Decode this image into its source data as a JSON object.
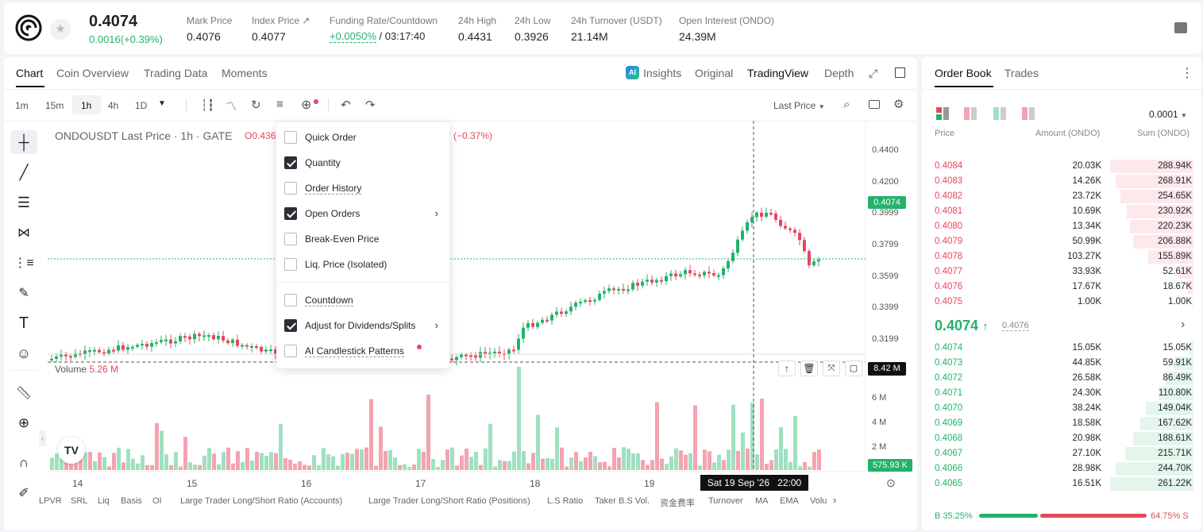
{
  "header": {
    "price": "0.4074",
    "change": "0.0016(+0.39%)",
    "stats": [
      {
        "label": "Mark Price",
        "value": "0.4076"
      },
      {
        "label": "Index Price ↗",
        "value": "0.4077"
      },
      {
        "label": "Funding Rate/Countdown",
        "value_green": "+0.0050%",
        "value": "/ 03:17:40"
      },
      {
        "label": "24h High",
        "value": "0.4431"
      },
      {
        "label": "24h Low",
        "value": "0.3926"
      },
      {
        "label": "24h Turnover (USDT)",
        "value": "21.14M"
      },
      {
        "label": "Open Interest (ONDO)",
        "value": "24.39M"
      }
    ]
  },
  "chart_tabs": [
    "Chart",
    "Coin Overview",
    "Trading Data",
    "Moments"
  ],
  "chart_views": {
    "insights": "Insights",
    "original": "Original",
    "tradingview": "TradingView",
    "depth": "Depth"
  },
  "toolbar": {
    "intervals": [
      "1m",
      "15m",
      "1h",
      "4h",
      "1D"
    ],
    "price_type": "Last Price"
  },
  "legend": {
    "symbol": "ONDOUSDT Last Price · 1h · GATE",
    "open": "O0.436",
    "change": "(−0.37%)",
    "volume_label": "Volume",
    "volume_value": "5.26 M"
  },
  "menu": [
    {
      "label": "Quick Order",
      "checked": false,
      "submenu": false
    },
    {
      "label": "Quantity",
      "checked": true,
      "submenu": false
    },
    {
      "label": "Order History",
      "checked": false,
      "submenu": false
    },
    {
      "label": "Open Orders",
      "checked": true,
      "submenu": true
    },
    {
      "label": "Break-Even Price",
      "checked": false,
      "submenu": false
    },
    {
      "label": "Liq. Price (Isolated)",
      "checked": false,
      "submenu": false
    },
    {
      "label": "Countdown",
      "checked": false,
      "submenu": false
    },
    {
      "label": "Adjust for Dividends/Splits",
      "checked": true,
      "submenu": true
    },
    {
      "label": "AI Candlestick Patterns",
      "checked": false,
      "submenu": false
    }
  ],
  "axis": {
    "price_ticks": [
      "0.4400",
      "0.4200",
      "0.3999",
      "0.3799",
      "0.3599",
      "0.3399",
      "0.3199"
    ],
    "current_price_tag": "0.4074",
    "volume_ticks": [
      "6 M",
      "4 M",
      "2 M"
    ],
    "volume_crosshair_tag": "8.42 M",
    "volume_last_tag": "575.93 K",
    "date_ticks": [
      "14",
      "15",
      "16",
      "17",
      "18",
      "19"
    ],
    "crosshair_date": "Sat 19 Sep '26   22:00"
  },
  "indicators": [
    "LPVR",
    "SRL",
    "Liq",
    "Basis",
    "OI",
    "Large Trader Long/Short Ratio (Accounts)",
    "Large Trader Long/Short Ratio (Positions)",
    "L.S Ratio",
    "Taker B.S Vol.",
    "资金费率",
    "Turnover",
    "MA",
    "EMA",
    "Volu"
  ],
  "orderbook": {
    "tabs": [
      "Order Book",
      "Trades"
    ],
    "precision": "0.0001",
    "columns": [
      "Price",
      "Amount (ONDO)",
      "Sum (ONDO)"
    ],
    "asks": [
      {
        "price": "0.4084",
        "amount": "20.03K",
        "sum": "288.94K",
        "depth": 1.0
      },
      {
        "price": "0.4083",
        "amount": "14.26K",
        "sum": "268.91K",
        "depth": 0.93
      },
      {
        "price": "0.4082",
        "amount": "23.72K",
        "sum": "254.65K",
        "depth": 0.88
      },
      {
        "price": "0.4081",
        "amount": "10.69K",
        "sum": "230.92K",
        "depth": 0.8
      },
      {
        "price": "0.4080",
        "amount": "13.34K",
        "sum": "220.23K",
        "depth": 0.76
      },
      {
        "price": "0.4079",
        "amount": "50.99K",
        "sum": "206.88K",
        "depth": 0.72
      },
      {
        "price": "0.4078",
        "amount": "103.27K",
        "sum": "155.89K",
        "depth": 0.54
      },
      {
        "price": "0.4077",
        "amount": "33.93K",
        "sum": "52.61K",
        "depth": 0.18
      },
      {
        "price": "0.4076",
        "amount": "17.67K",
        "sum": "18.67K",
        "depth": 0.07
      },
      {
        "price": "0.4075",
        "amount": "1.00K",
        "sum": "1.00K",
        "depth": 0.01
      }
    ],
    "last_price": "0.4074",
    "mark_price": "0.4076",
    "bids": [
      {
        "price": "0.4074",
        "amount": "15.05K",
        "sum": "15.05K",
        "depth": 0.06
      },
      {
        "price": "0.4073",
        "amount": "44.85K",
        "sum": "59.91K",
        "depth": 0.23
      },
      {
        "price": "0.4072",
        "amount": "26.58K",
        "sum": "86.49K",
        "depth": 0.33
      },
      {
        "price": "0.4071",
        "amount": "24.30K",
        "sum": "110.80K",
        "depth": 0.42
      },
      {
        "price": "0.4070",
        "amount": "38.24K",
        "sum": "149.04K",
        "depth": 0.57
      },
      {
        "price": "0.4069",
        "amount": "18.58K",
        "sum": "167.62K",
        "depth": 0.64
      },
      {
        "price": "0.4068",
        "amount": "20.98K",
        "sum": "188.61K",
        "depth": 0.72
      },
      {
        "price": "0.4067",
        "amount": "27.10K",
        "sum": "215.71K",
        "depth": 0.82
      },
      {
        "price": "0.4066",
        "amount": "28.98K",
        "sum": "244.70K",
        "depth": 0.93
      },
      {
        "price": "0.4065",
        "amount": "16.51K",
        "sum": "261.22K",
        "depth": 1.0
      }
    ],
    "buy_ratio": "B 35.25%",
    "sell_ratio": "64.75% S",
    "buy_fraction": 0.3525
  },
  "colors": {
    "up": "#23b26a",
    "down": "#e5485d",
    "up_volume": "#9fe0c0",
    "down_volume": "#f4a3b0"
  }
}
